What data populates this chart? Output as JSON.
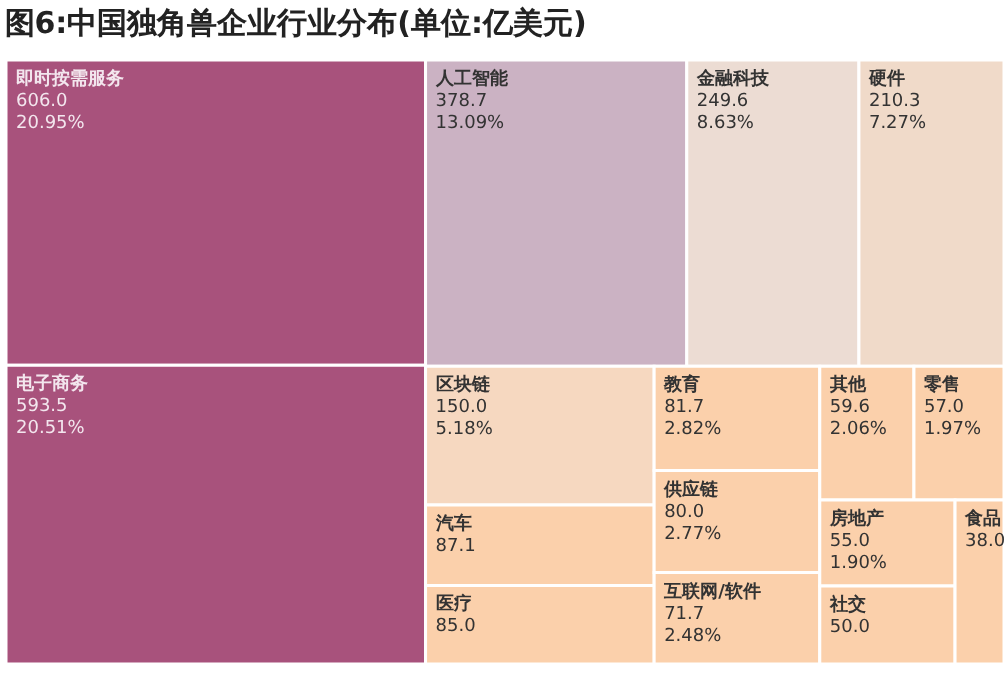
{
  "chart_data": {
    "type": "other",
    "title": "图6:中国独角兽企业行业分布(单位:亿美元)",
    "categories": [
      "即时按需服务",
      "电子商务",
      "人工智能",
      "金融科技",
      "硬件",
      "区块链",
      "汽车",
      "医疗",
      "教育",
      "供应链",
      "互联网/软件",
      "其他",
      "零售",
      "房地产",
      "社交",
      "食品"
    ],
    "series": [
      {
        "values": [
          606.0,
          593.5,
          378.7,
          249.6,
          210.3,
          150.0,
          87.1,
          85.0,
          81.7,
          80.0,
          71.7,
          59.6,
          57.0,
          55.0,
          50.0,
          38.0
        ],
        "value_labels": [
          "606.0",
          "593.5",
          "378.7",
          "249.6",
          "210.3",
          "150.0",
          "87.1",
          "85.0",
          "81.7",
          "80.0",
          "71.7",
          "59.6",
          "57.0",
          "55.0",
          "50.0",
          "38.0"
        ],
        "colors": [
          "#a8527c",
          "#a8527c",
          "#cbb2c3",
          "#ecdcd3",
          "#f0dac9",
          "#f6d8c0",
          "#fbd0ab",
          "#fbd0ab",
          "#fbd0ab",
          "#fbd0ab",
          "#fbd0ab",
          "#fbd0ab",
          "#fbd0ab",
          "#fbd0ab",
          "#fbd0ab",
          "#fbd0ab"
        ]
      },
      {
        "values": [
          20.95,
          20.51,
          13.09,
          8.63,
          7.27,
          5.18,
          null,
          null,
          2.82,
          2.77,
          2.48,
          2.06,
          1.97,
          1.9,
          null,
          null
        ],
        "value_labels": [
          "20.95%",
          "20.51%",
          "13.09%",
          "8.63%",
          "7.27%",
          "5.18%",
          null,
          null,
          "2.82%",
          "2.77%",
          "2.48%",
          "2.06%",
          "1.97%",
          "1.90%",
          null,
          null
        ]
      }
    ]
  }
}
